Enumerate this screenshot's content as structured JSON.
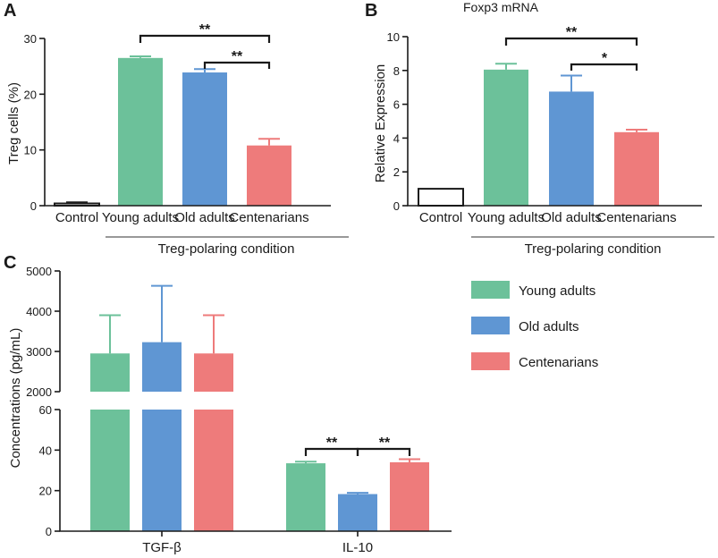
{
  "colors": {
    "young": "#6cc19a",
    "old": "#5f96d3",
    "cent": "#ee7b7b"
  },
  "chart_data": [
    {
      "panel": "A",
      "type": "bar",
      "title": "",
      "xlabel": "",
      "ylabel": "Treg cells (%)",
      "ylim": [
        0,
        30
      ],
      "yticks": [
        "0",
        "10",
        "20",
        "30"
      ],
      "categories": [
        "Control",
        "Young adults",
        "Old adults",
        "Centenarians"
      ],
      "values": [
        0.4,
        26.5,
        23.9,
        10.8
      ],
      "errors": [
        0.2,
        0.3,
        0.6,
        1.2
      ],
      "group_label": "Treg-polaring condition",
      "significance": [
        {
          "from": "Young adults",
          "to": "Centenarians",
          "label": "**"
        },
        {
          "from": "Old adults",
          "to": "Centenarians",
          "label": "**"
        }
      ]
    },
    {
      "panel": "B",
      "type": "bar",
      "title": "Foxp3 mRNA",
      "xlabel": "",
      "ylabel": "Relative Expression",
      "ylim": [
        0,
        10
      ],
      "yticks": [
        "0",
        "2",
        "4",
        "6",
        "8",
        "10"
      ],
      "categories": [
        "Control",
        "Young adults",
        "Old adults",
        "Centenarians"
      ],
      "values": [
        1.0,
        8.05,
        6.75,
        4.35
      ],
      "errors": [
        0,
        0.35,
        0.95,
        0.15
      ],
      "group_label": "Treg-polaring condition",
      "significance": [
        {
          "from": "Young adults",
          "to": "Centenarians",
          "label": "**"
        },
        {
          "from": "Old adults",
          "to": "Centenarians",
          "label": "*"
        }
      ]
    },
    {
      "panel": "C",
      "type": "bar",
      "title": "",
      "xlabel": "",
      "ylabel": "Concentrations (pg/mL)",
      "ylim": [
        0,
        5000
      ],
      "axis_break": [
        60,
        2000
      ],
      "yticks_lower": [
        "0",
        "20",
        "40",
        "60"
      ],
      "yticks_upper": [
        "2000",
        "3000",
        "4000",
        "5000"
      ],
      "categories": [
        "TGF-β",
        "IL-10"
      ],
      "series": [
        {
          "name": "Young adults",
          "values": [
            2950,
            33.5
          ],
          "errors": [
            950,
            0.8
          ]
        },
        {
          "name": "Old adults",
          "values": [
            3230,
            18.3
          ],
          "errors": [
            1400,
            0.6
          ]
        },
        {
          "name": "Centenarians",
          "values": [
            2950,
            34.0
          ],
          "errors": [
            950,
            1.5
          ]
        }
      ],
      "legend": [
        "Young adults",
        "Old adults",
        "Centenarians"
      ],
      "legend_position": "right",
      "significance": [
        {
          "category": "IL-10",
          "from": "Young adults",
          "to": "Old adults",
          "label": "**"
        },
        {
          "category": "IL-10",
          "from": "Old adults",
          "to": "Centenarians",
          "label": "**"
        }
      ]
    }
  ]
}
